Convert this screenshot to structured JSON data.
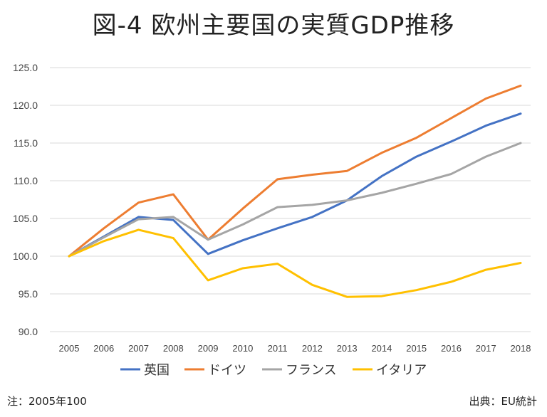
{
  "chart_data": {
    "type": "line",
    "title": "図-4 欧州主要国の実質GDP推移",
    "categories": [
      "2005",
      "2006",
      "2007",
      "2008",
      "2009",
      "2010",
      "2011",
      "2012",
      "2013",
      "2014",
      "2015",
      "2016",
      "2017",
      "2018"
    ],
    "ylim": [
      90.0,
      125.0
    ],
    "yticks": [
      "90.0",
      "95.0",
      "100.0",
      "105.0",
      "110.0",
      "115.0",
      "120.0",
      "125.0"
    ],
    "grid": "horizontal",
    "legend_position": "bottom",
    "series": [
      {
        "name": "英国",
        "color": "#4472C4",
        "values": [
          100.0,
          102.6,
          105.2,
          104.8,
          100.3,
          102.1,
          103.7,
          105.2,
          107.4,
          110.6,
          113.2,
          115.2,
          117.3,
          118.9
        ]
      },
      {
        "name": "ドイツ",
        "color": "#ED7D31",
        "values": [
          100.0,
          103.7,
          107.1,
          108.2,
          102.2,
          106.3,
          110.2,
          110.8,
          111.3,
          113.7,
          115.7,
          118.3,
          120.9,
          122.6
        ]
      },
      {
        "name": "フランス",
        "color": "#A5A5A5",
        "values": [
          100.0,
          102.5,
          104.9,
          105.2,
          102.2,
          104.2,
          106.5,
          106.8,
          107.4,
          108.4,
          109.6,
          110.9,
          113.2,
          115.0
        ]
      },
      {
        "name": "イタリア",
        "color": "#FFC000",
        "values": [
          100.0,
          102.0,
          103.5,
          102.4,
          96.8,
          98.4,
          99.0,
          96.2,
          94.6,
          94.7,
          95.5,
          96.6,
          98.2,
          99.1
        ]
      }
    ],
    "note": "注：2005年100",
    "source": "出典：EU統計"
  }
}
